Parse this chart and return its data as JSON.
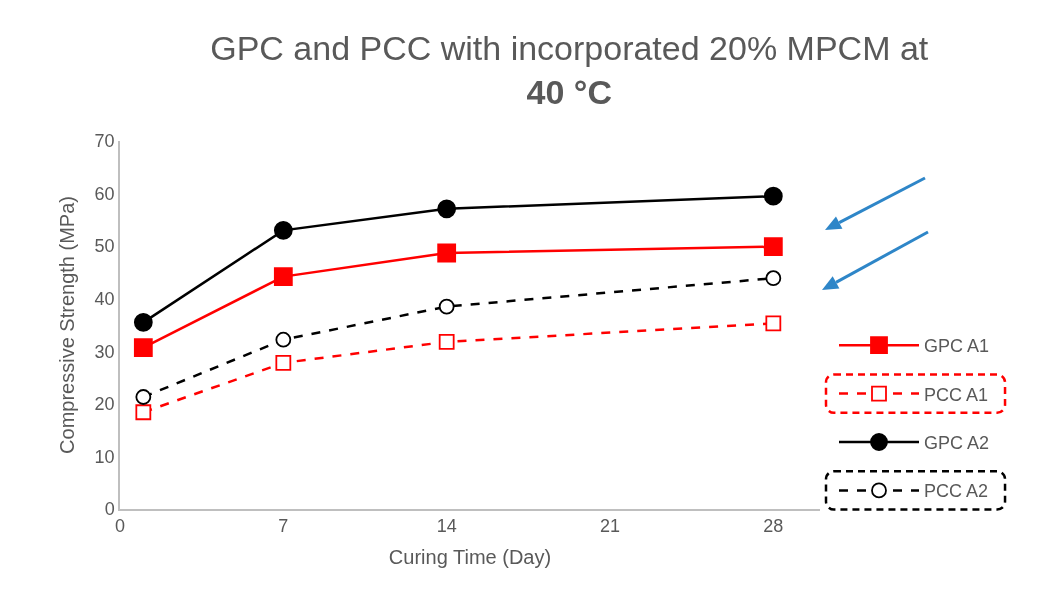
{
  "chart_data": {
    "type": "line",
    "title": "GPC and PCC with incorporated 20% MPCM at\n40 °C",
    "xlabel": "Curing Time (Day)",
    "ylabel": "Compressive Strength (MPa)",
    "x": [
      1,
      7,
      14,
      28
    ],
    "series": [
      {
        "name": "GPC A1",
        "color": "#ff0000",
        "values": [
          30.7,
          44.2,
          48.7,
          49.9
        ],
        "marker": "square",
        "line_style": "solid"
      },
      {
        "name": "PCC A1",
        "color": "#ff0000",
        "values": [
          18.4,
          27.8,
          31.8,
          35.3
        ],
        "marker": "square-open",
        "line_style": "dashed"
      },
      {
        "name": "GPC A2",
        "color": "#000000",
        "values": [
          35.5,
          53.0,
          57.1,
          59.5
        ],
        "marker": "circle",
        "line_style": "solid"
      },
      {
        "name": "PCC A2",
        "color": "#000000",
        "values": [
          21.3,
          32.2,
          38.5,
          43.9
        ],
        "marker": "circle-open",
        "line_style": "dashed"
      }
    ],
    "xlim": [
      0,
      30
    ],
    "xticks": [
      0,
      7,
      14,
      21,
      28
    ],
    "ylim": [
      0,
      70
    ],
    "yticks": [
      0,
      10,
      20,
      30,
      40,
      50,
      60,
      70
    ],
    "grid": false,
    "legend": "bottom right"
  }
}
